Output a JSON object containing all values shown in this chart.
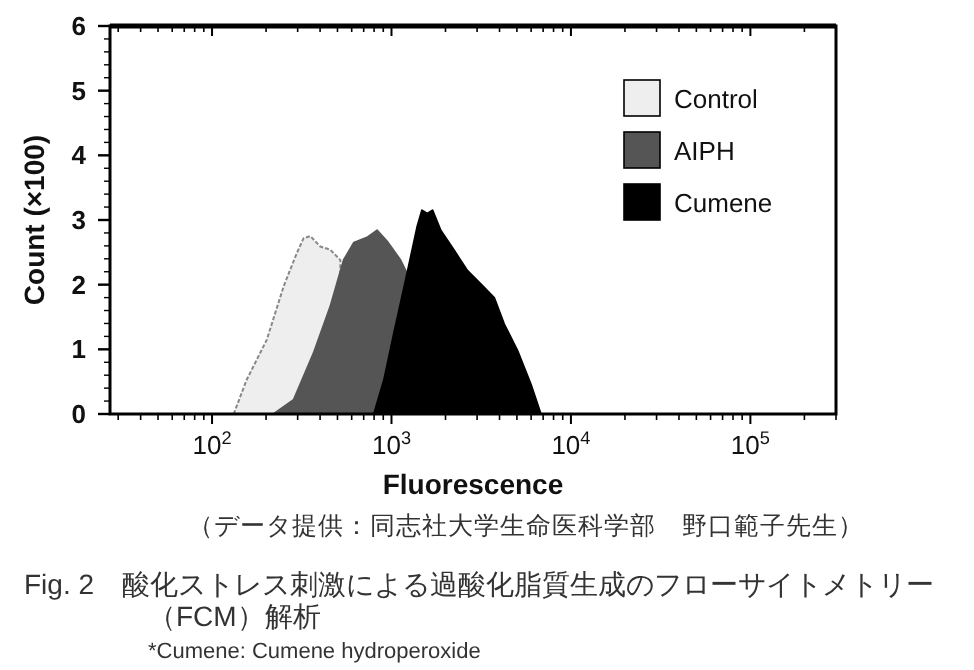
{
  "chart_data": {
    "type": "area",
    "xlabel": "Fluorescence",
    "ylabel": "Count (×100)",
    "log": "x",
    "legend": "top right",
    "xlim": [
      27,
      300000
    ],
    "ylim": [
      0,
      6
    ],
    "xticks": [
      {
        "value": 100,
        "label": "10$^{2}$"
      },
      {
        "value": 1000,
        "label": "10$^{3}$"
      },
      {
        "value": 10000,
        "label": "10$^{4}$"
      },
      {
        "value": 100000,
        "label": "10$^{5}$"
      }
    ],
    "yticks": [
      0,
      1,
      2,
      3,
      4,
      5,
      6
    ],
    "series": [
      {
        "name": "Control",
        "color": "#eeeeee",
        "x": [
          132,
          156,
          202,
          251,
          297,
          324,
          353,
          401,
          456,
          519
        ],
        "values": [
          0,
          0.53,
          1.15,
          1.98,
          2.49,
          2.72,
          2.75,
          2.59,
          2.54,
          2.38
        ]
      },
      {
        "name": "AIPH",
        "color": "#555555",
        "x": [
          220,
          285,
          368,
          456,
          542,
          617,
          731,
          832,
          945,
          1122,
          1222
        ],
        "values": [
          0,
          0.22,
          0.94,
          1.66,
          2.38,
          2.65,
          2.73,
          2.84,
          2.67,
          2.38,
          2.17
        ]
      },
      {
        "name": "Cumene",
        "color": "#000000",
        "x": [
          798,
          907,
          1031,
          1222,
          1390,
          1479,
          1581,
          1694,
          1879,
          2233,
          2643,
          3141,
          3732,
          4244,
          5035,
          5980,
          6794
        ],
        "values": [
          0,
          0.52,
          1.24,
          2.17,
          2.89,
          3.15,
          3.1,
          3.15,
          2.84,
          2.53,
          2.22,
          2.01,
          1.8,
          1.39,
          0.98,
          0.46,
          0
        ]
      }
    ],
    "annotations": [
      "（データ提供：同志社大学生命医科学部　野口範子先生）",
      "Fig. 2　酸化ストレス刺激による過酸化脂質生成のフローサイトメトリー（FCM）解析",
      "*Cumene: Cumene hydroperoxide"
    ]
  }
}
